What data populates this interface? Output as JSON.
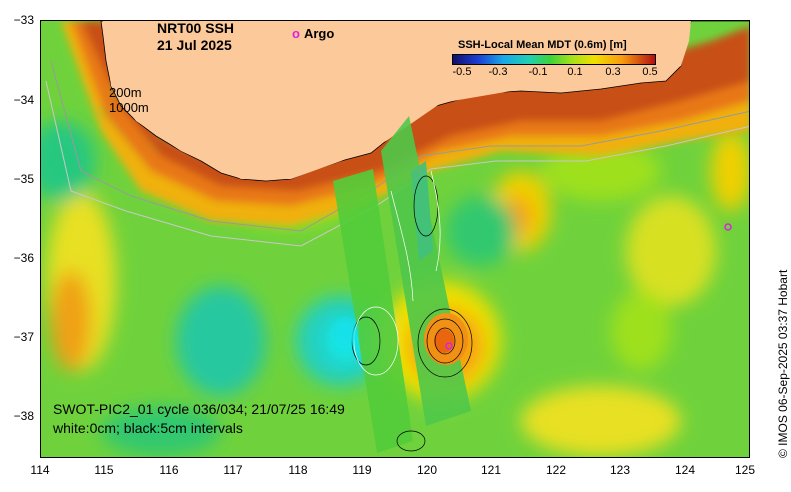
{
  "title": {
    "line1": "NRT00 SSH",
    "line2": "21 Jul 2025"
  },
  "argo_legend": {
    "marker": "o",
    "label": "Argo"
  },
  "depth_contours": {
    "line1": "200m",
    "line2": "1000m"
  },
  "colorbar": {
    "title": "SSH-Local Mean MDT (0.6m) [m]",
    "labels": [
      "-0.5",
      "-0.3",
      "-0.1",
      "0.1",
      "0.3",
      "0.5"
    ],
    "colors": [
      "#10106a",
      "#1c3cd0",
      "#19a8e8",
      "#21d0b0",
      "#3dd23a",
      "#9ee01c",
      "#f0e000",
      "#f79a10",
      "#b41010"
    ]
  },
  "swot_info": {
    "line1": "SWOT-PIC2_01 cycle 036/034; 21/07/25 16:49",
    "line2": "white:0cm; black:5cm intervals"
  },
  "credit": "© IMOS 06-Sep-2025 03:37 Hobart",
  "axes": {
    "y_labels": [
      "−33",
      "−34",
      "−35",
      "−36",
      "−37",
      "−38"
    ],
    "x_labels": [
      "114",
      "115",
      "116",
      "117",
      "118",
      "119",
      "120",
      "121",
      "122",
      "123",
      "124",
      "125"
    ]
  },
  "colors": {
    "land": "#fbc99a",
    "ocean_base": "#6fd23c",
    "argo": "#e020e0"
  }
}
